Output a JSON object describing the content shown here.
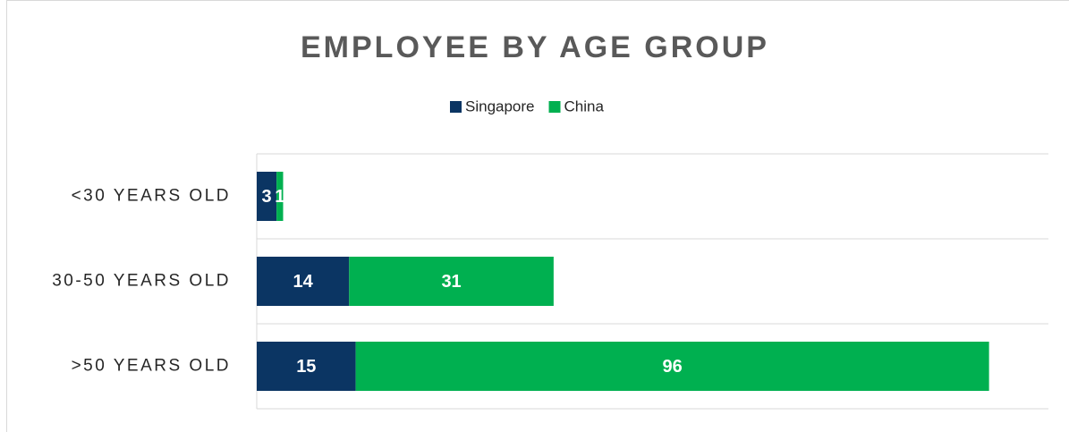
{
  "chart_data": {
    "type": "stacked-barh",
    "title": "EMPLOYEE BY AGE GROUP",
    "categories": [
      "<30 YEARS OLD",
      "30-50 YEARS OLD",
      ">50 YEARS OLD"
    ],
    "series": [
      {
        "name": "Singapore",
        "color": "#0b3563",
        "values": [
          3,
          14,
          15
        ]
      },
      {
        "name": "China",
        "color": "#00b050",
        "values": [
          1,
          31,
          96
        ]
      }
    ],
    "xlim": [
      0,
      120
    ],
    "legend": "top"
  }
}
